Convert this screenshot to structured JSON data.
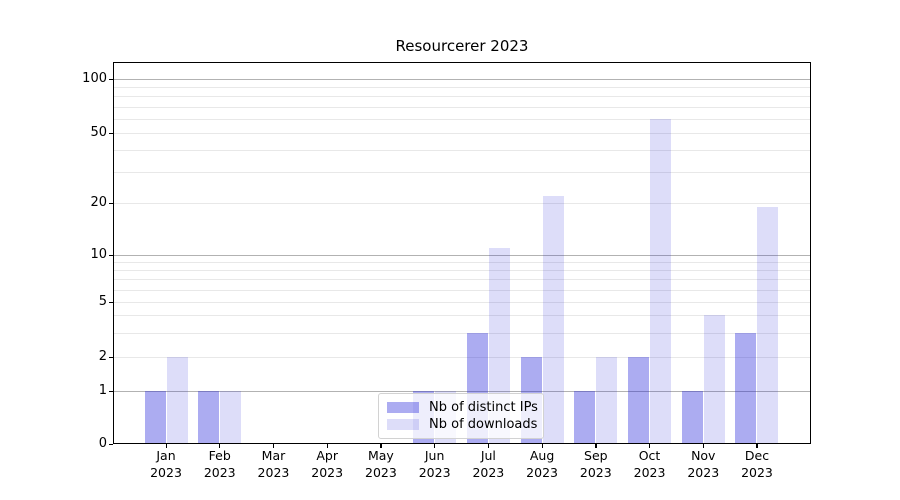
{
  "chart_data": {
    "type": "bar",
    "title": "Resourcerer 2023",
    "categories": [
      "Jan",
      "Feb",
      "Mar",
      "Apr",
      "May",
      "Jun",
      "Jul",
      "Aug",
      "Sep",
      "Oct",
      "Nov",
      "Dec"
    ],
    "category_year": "2023",
    "series": [
      {
        "name": "Nb of distinct IPs",
        "color": "#1919d7",
        "alpha": 0.36,
        "values": [
          1,
          1,
          0,
          0,
          0,
          1,
          3,
          2,
          1,
          2,
          1,
          3
        ]
      },
      {
        "name": "Nb of downloads",
        "color": "#1919d7",
        "alpha": 0.15,
        "values": [
          2,
          1,
          0,
          0,
          0,
          1,
          11,
          22,
          2,
          60,
          4,
          19
        ]
      }
    ],
    "xlabel": "",
    "ylabel": "",
    "yscale": "symlog-like",
    "ylim": [
      0,
      125
    ],
    "yticks": [
      0,
      1,
      2,
      5,
      10,
      20,
      50,
      100
    ],
    "major_gridlines": [
      1,
      10,
      100
    ],
    "minor_gridlines": [
      2,
      3,
      4,
      5,
      6,
      7,
      8,
      9,
      20,
      30,
      40,
      50,
      60,
      70,
      80,
      90
    ],
    "grid": true,
    "legend_position": "lower center"
  },
  "colors": {
    "background": "#ffffff",
    "axis": "#000000",
    "text": "#000000",
    "major_grid": "#b2b2b2",
    "minor_grid": "#e8e8e8",
    "legend_border": "#d2d2d2"
  }
}
